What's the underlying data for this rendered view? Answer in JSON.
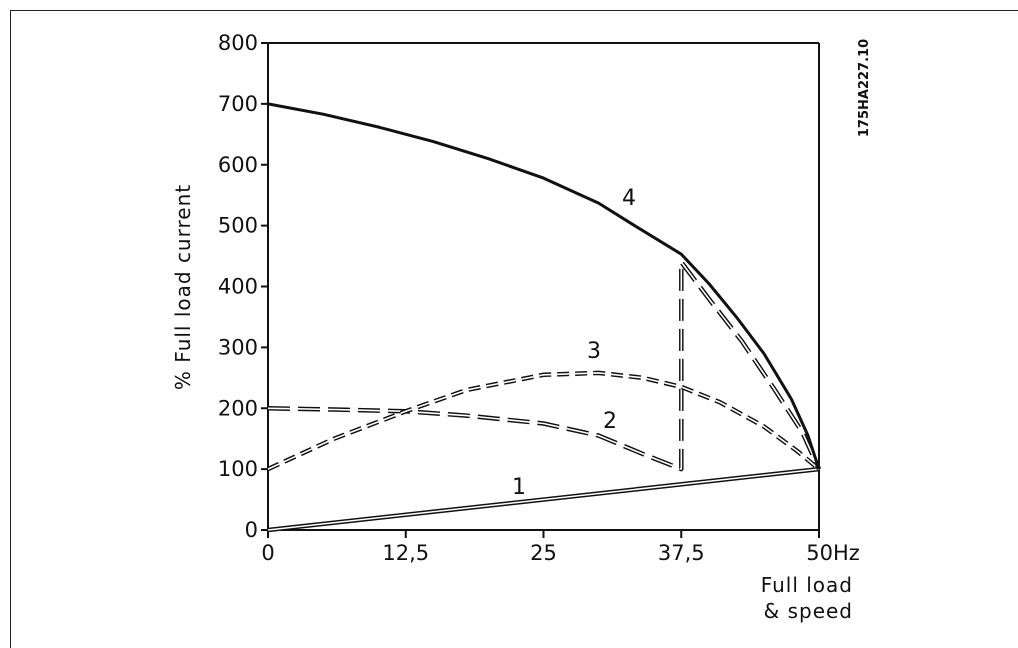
{
  "figure_code": "175HA227.10",
  "chart_data": {
    "type": "line",
    "ylabel": "% Full load current",
    "xlabel_lines": [
      "Full load",
      "& speed"
    ],
    "x_ticks": [
      "0",
      "12,5",
      "25",
      "37,5",
      "50Hz"
    ],
    "x_tick_values": [
      0,
      12.5,
      25,
      37.5,
      50
    ],
    "y_ticks": [
      "0",
      "100",
      "200",
      "300",
      "400",
      "500",
      "600",
      "700",
      "800"
    ],
    "y_tick_values": [
      0,
      100,
      200,
      300,
      400,
      500,
      600,
      700,
      800
    ],
    "xlim": [
      0,
      50
    ],
    "ylim": [
      0,
      800
    ],
    "grid": false,
    "series": [
      {
        "name": "1",
        "style": "double-solid",
        "x": [
          0,
          50
        ],
        "y": [
          0,
          100
        ]
      },
      {
        "name": "2",
        "style": "long-dash-double",
        "x": [
          0,
          6,
          12.5,
          18,
          25,
          30,
          34,
          37.5,
          37.5,
          40,
          43,
          46,
          48.5,
          50
        ],
        "y": [
          200,
          198,
          195,
          188,
          175,
          155,
          125,
          100,
          440,
          380,
          310,
          230,
          160,
          100
        ]
      },
      {
        "name": "3",
        "style": "short-dash-double",
        "x": [
          0,
          6,
          12.5,
          18,
          25,
          30,
          34,
          37.5,
          41,
          45,
          48,
          50
        ],
        "y": [
          100,
          150,
          195,
          230,
          255,
          258,
          250,
          235,
          210,
          170,
          130,
          100
        ]
      },
      {
        "name": "4",
        "style": "solid-bold",
        "x": [
          0,
          5,
          10,
          15,
          20,
          25,
          30,
          33,
          37.5,
          40,
          42.5,
          45,
          47.5,
          49,
          50
        ],
        "y": [
          700,
          683,
          662,
          638,
          610,
          578,
          537,
          503,
          453,
          405,
          350,
          290,
          215,
          155,
          100
        ]
      }
    ]
  }
}
